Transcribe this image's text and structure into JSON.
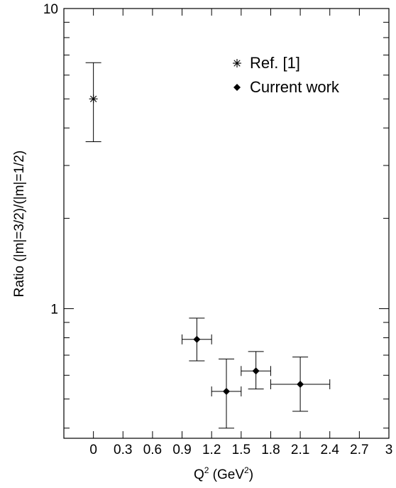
{
  "chart_data": {
    "type": "scatter",
    "title": "",
    "xlabel": {
      "base": "Q",
      "sup": "2",
      "mid": " (GeV",
      "sup2": "2",
      "end": ")"
    },
    "ylabel": "Ratio (|m|=3/2)/(|m|=1/2)",
    "xlim": [
      -0.3,
      3.0
    ],
    "ylim": [
      0.37,
      10
    ],
    "yscale": "log",
    "x_ticks": [
      0,
      0.3,
      0.6,
      0.9,
      1.2,
      1.5,
      1.8,
      2.1,
      2.4,
      2.7,
      3.0
    ],
    "x_tick_labels": [
      "0",
      "0.3",
      "0.6",
      "0.9",
      "1.2",
      "1.5",
      "1.8",
      "2.1",
      "2.4",
      "2.7",
      "3"
    ],
    "y_tick_labels": [
      {
        "value": 1,
        "label": "1"
      },
      {
        "value": 10,
        "label": "10"
      }
    ],
    "legend_position": "top-right",
    "series": [
      {
        "name": "Ref. [1]",
        "marker": "asterisk",
        "points": [
          {
            "x": 0.0,
            "y": 5.0,
            "x_err": 0,
            "y_lo": 3.6,
            "y_hi": 6.6
          }
        ]
      },
      {
        "name": "Current work",
        "marker": "diamond",
        "points": [
          {
            "x": 1.05,
            "y": 0.79,
            "x_err": 0.15,
            "y_lo": 0.67,
            "y_hi": 0.93
          },
          {
            "x": 1.35,
            "y": 0.53,
            "x_err": 0.15,
            "y_lo": 0.4,
            "y_hi": 0.68
          },
          {
            "x": 1.65,
            "y": 0.62,
            "x_err": 0.15,
            "y_lo": 0.54,
            "y_hi": 0.72
          },
          {
            "x": 2.1,
            "y": 0.56,
            "x_err": 0.3,
            "y_lo": 0.455,
            "y_hi": 0.69
          }
        ]
      }
    ]
  }
}
